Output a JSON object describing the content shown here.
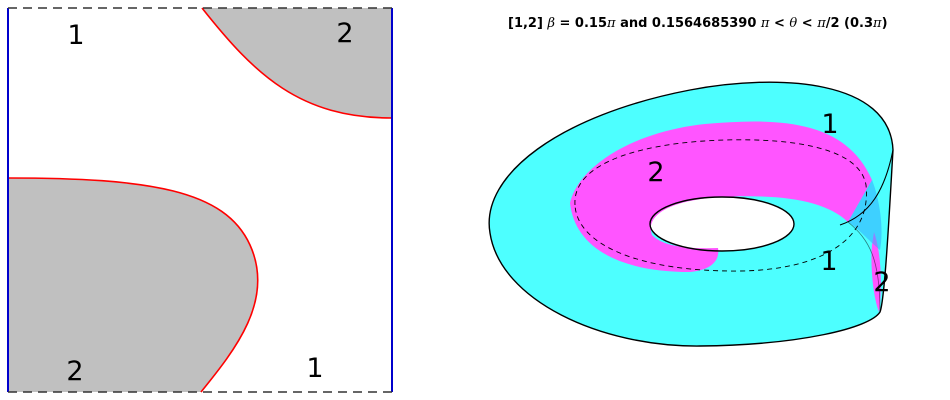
{
  "title": {
    "prefix": "[1,2]",
    "beta_symbol": "β",
    "beta_value": " = 0.15",
    "pi_1": "π",
    "middle": " and 0.1564685390 ",
    "pi_2": "π",
    "lt_1": " < ",
    "theta_symbol": "θ",
    "lt_2": " < ",
    "pi_3": "π",
    "suffix": "/2  (0.3",
    "pi_4": "π",
    "close": ")"
  },
  "left_panel": {
    "labels": {
      "top_left": "1",
      "top_right": "2",
      "bottom_left": "2",
      "bottom_right": "1"
    }
  },
  "right_panel": {
    "labels": {
      "outer_top": "1",
      "inner": "2",
      "outer_bottom": "1",
      "edge": "2"
    }
  },
  "colors": {
    "gray_region": "#c0c0c0",
    "boundary_curve": "#ff0000",
    "side_edges": "#0000cc",
    "cyan_band": "#4dffff",
    "magenta_band": "#ff55ff",
    "outline": "#000000"
  }
}
